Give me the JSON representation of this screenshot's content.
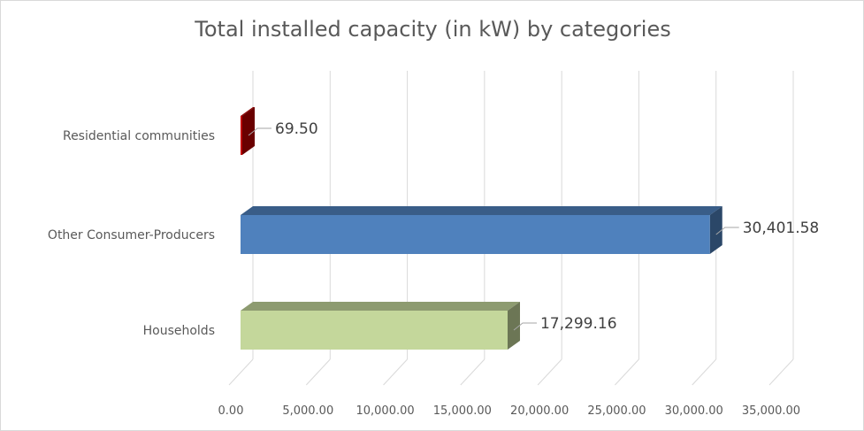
{
  "chart_data": {
    "type": "bar",
    "orientation": "horizontal",
    "title": "Total installed capacity (in kW) by categories",
    "categories": [
      "Residential communities",
      "Other Consumer-Producers",
      "Households"
    ],
    "values": [
      69.5,
      30401.58,
      17299.16
    ],
    "data_labels": [
      "69.50",
      "30,401.58",
      "17,299.16"
    ],
    "xlim": [
      0,
      35000
    ],
    "ticks": [
      0,
      5000,
      10000,
      15000,
      20000,
      25000,
      30000,
      35000
    ],
    "tick_labels": [
      "0.00",
      "5,000.00",
      "10,000.00",
      "15,000.00",
      "20,000.00",
      "25,000.00",
      "30,000.00",
      "35,000.00"
    ],
    "grid": true,
    "legend": "none",
    "colors": [
      "#c00000",
      "#4f81bd",
      "#c4d79b"
    ]
  }
}
